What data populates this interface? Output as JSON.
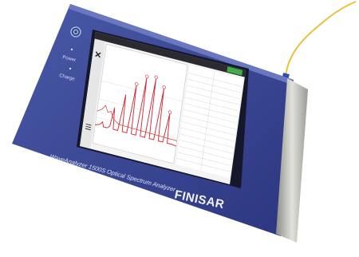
{
  "device": {
    "power_label": "Power",
    "charge_label": "Charge",
    "model": "WaveAnalyzer 1500S   Optical Spectrum Analyzer",
    "brand": "FINISAR"
  }
}
